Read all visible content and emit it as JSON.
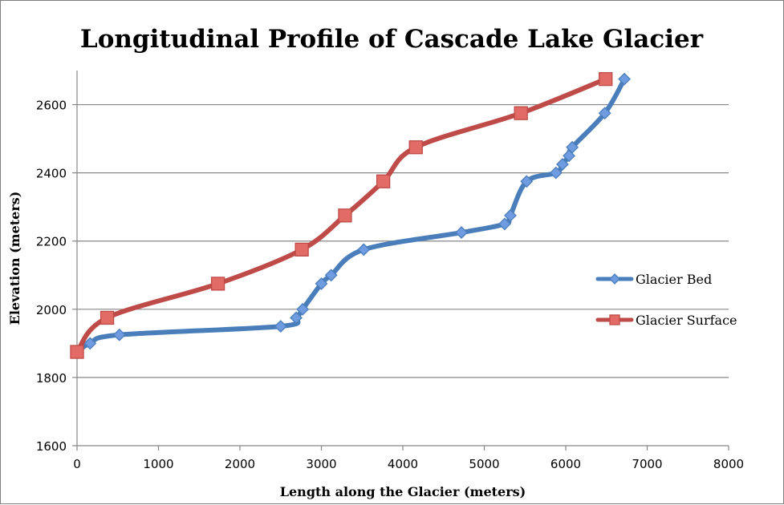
{
  "chart_data": {
    "type": "line",
    "title": "Longitudinal Profile of Cascade Lake Glacier",
    "xlabel": "Length along the Glacier (meters)",
    "ylabel": "Elevation (meters)",
    "xlim": [
      0,
      8000
    ],
    "ylim": [
      1600,
      2700
    ],
    "xticks": [
      0,
      1000,
      2000,
      3000,
      4000,
      5000,
      6000,
      7000,
      8000
    ],
    "yticks": [
      1600,
      1800,
      2000,
      2200,
      2400,
      2600
    ],
    "grid": "horizontal",
    "legend_position": "right",
    "smooth": true,
    "series": [
      {
        "name": "Glacier Bed",
        "color": "#4a7ebb",
        "marker_color": "#6f9be0",
        "marker": "diamond",
        "points": [
          [
            0,
            1875
          ],
          [
            160,
            1900
          ],
          [
            520,
            1925
          ],
          [
            2500,
            1950
          ],
          [
            2690,
            1975
          ],
          [
            2770,
            2000
          ],
          [
            3000,
            2075
          ],
          [
            3120,
            2100
          ],
          [
            3520,
            2175
          ],
          [
            4720,
            2225
          ],
          [
            5250,
            2250
          ],
          [
            5320,
            2275
          ],
          [
            5520,
            2375
          ],
          [
            5880,
            2400
          ],
          [
            5960,
            2425
          ],
          [
            6040,
            2450
          ],
          [
            6080,
            2475
          ],
          [
            6480,
            2575
          ],
          [
            6720,
            2675
          ]
        ]
      },
      {
        "name": "Glacier Surface",
        "color": "#be4b48",
        "marker_color": "#e36b66",
        "marker": "square",
        "points": [
          [
            0,
            1875
          ],
          [
            370,
            1975
          ],
          [
            1730,
            2075
          ],
          [
            2760,
            2175
          ],
          [
            3290,
            2275
          ],
          [
            3760,
            2375
          ],
          [
            4160,
            2475
          ],
          [
            5450,
            2575
          ],
          [
            6490,
            2675
          ]
        ]
      }
    ]
  }
}
